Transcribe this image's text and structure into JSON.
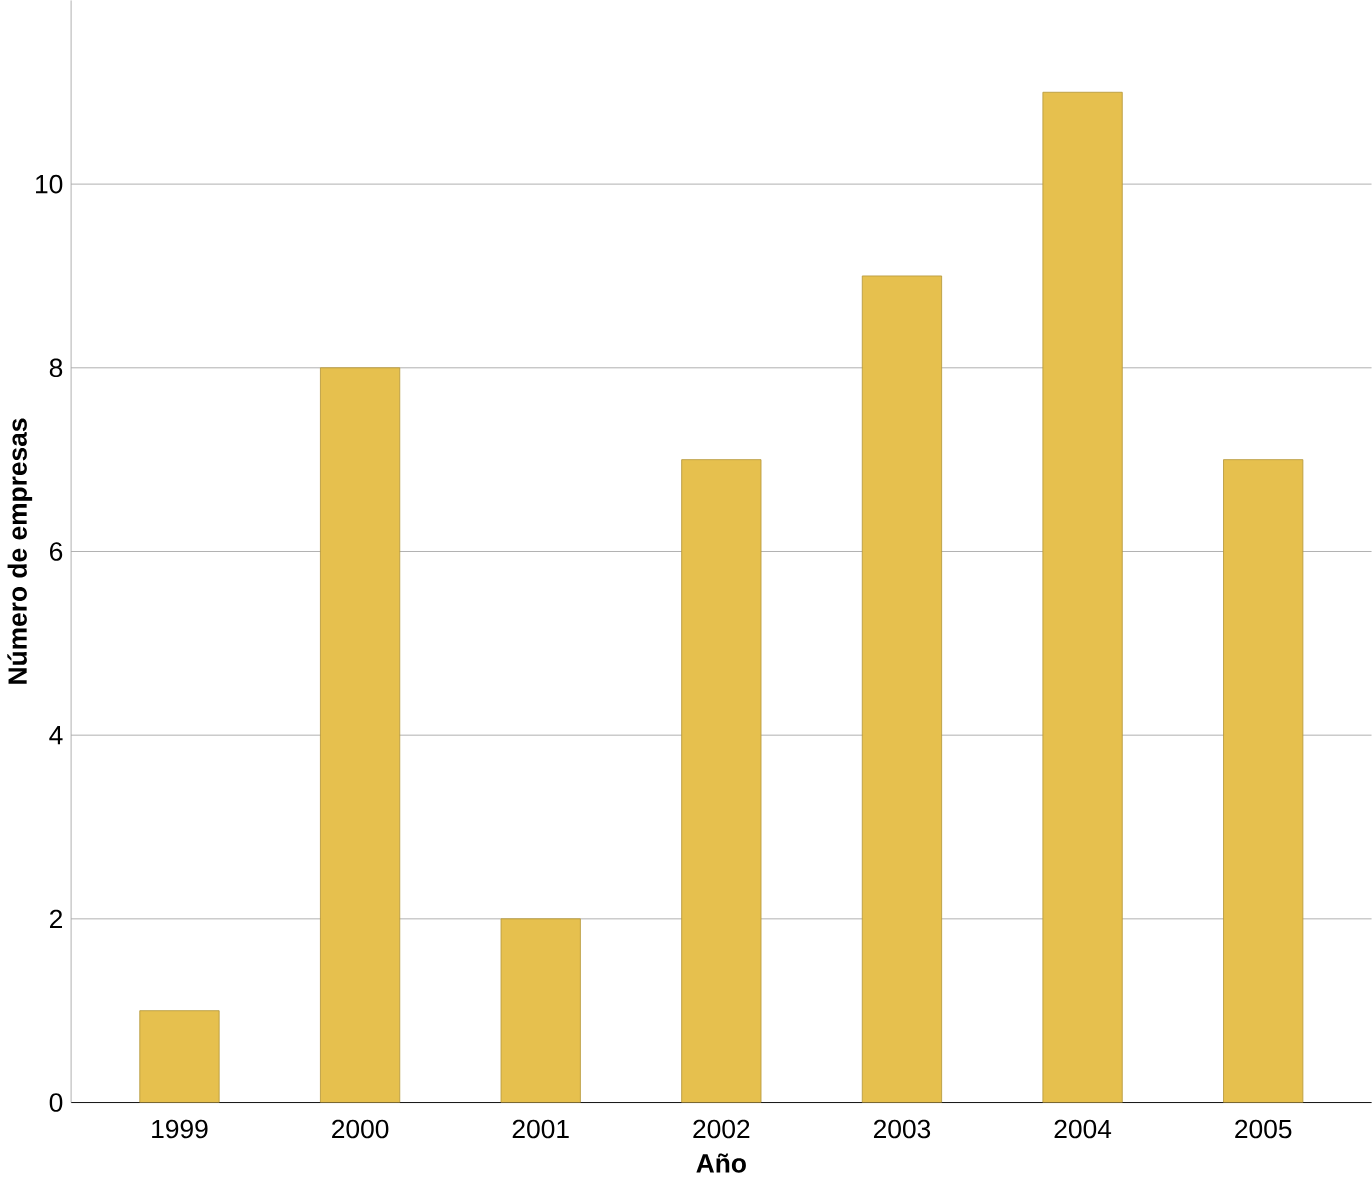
{
  "chart_data": {
    "type": "bar",
    "xlabel": "Año",
    "ylabel": "Número de empresas",
    "categories": [
      "1999",
      "2000",
      "2001",
      "2002",
      "2003",
      "2004",
      "2005"
    ],
    "values": [
      1,
      8,
      2,
      7,
      9,
      11,
      7
    ],
    "color": "#e6c04e",
    "ylim": [
      0,
      12
    ],
    "yticks": [
      0,
      2,
      4,
      6,
      8,
      10
    ],
    "grid": "y"
  }
}
